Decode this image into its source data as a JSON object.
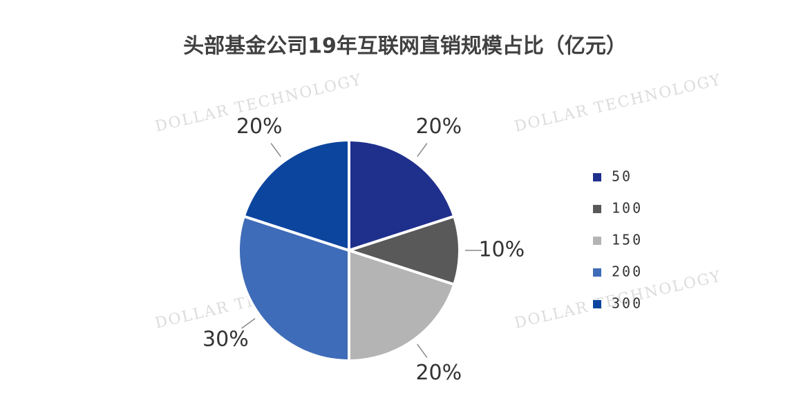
{
  "chart_data": {
    "type": "pie",
    "title": "头部基金公司19年互联网直销规模占比（亿元）",
    "watermark": "DOLLAR TECHNOLOGY",
    "categories": [
      "50",
      "100",
      "150",
      "200",
      "300"
    ],
    "values": [
      20,
      10,
      20,
      30,
      20
    ],
    "value_labels": [
      "20%",
      "10%",
      "20%",
      "30%",
      "20%"
    ],
    "colors": [
      "#1f2f8c",
      "#595959",
      "#b4b4b4",
      "#3f6cb8",
      "#0c459e"
    ],
    "legend": "right"
  }
}
